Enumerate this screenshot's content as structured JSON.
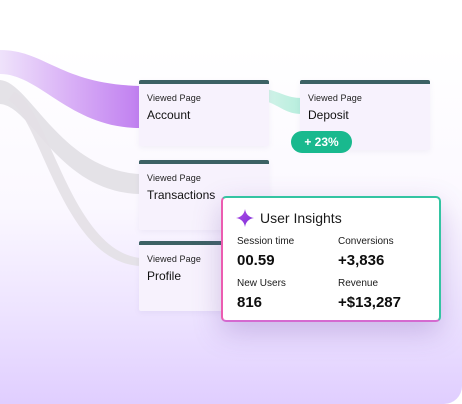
{
  "flow": {
    "cards": [
      {
        "kicker": "Viewed Page",
        "name": "Account"
      },
      {
        "kicker": "Viewed Page",
        "name": "Deposit"
      },
      {
        "kicker": "Viewed Page",
        "name": "Transactions"
      },
      {
        "kicker": "Viewed Page",
        "name": "Profile"
      }
    ],
    "change_badge": "+ 23%"
  },
  "insights": {
    "icon": "sparkle-icon",
    "title": "User Insights",
    "metrics": [
      {
        "label": "Session time",
        "value": "00.59"
      },
      {
        "label": "Conversions",
        "value": "+3,836"
      },
      {
        "label": "New Users",
        "value": "816"
      },
      {
        "label": "Revenue",
        "value": "+$13,287"
      }
    ]
  },
  "colors": {
    "card_border": "#3c6164",
    "badge": "#19b98e",
    "accent_purple": "#c98ef0",
    "flow_grey": "#e1dfe4",
    "flow_mint": "#c7f0e2"
  }
}
